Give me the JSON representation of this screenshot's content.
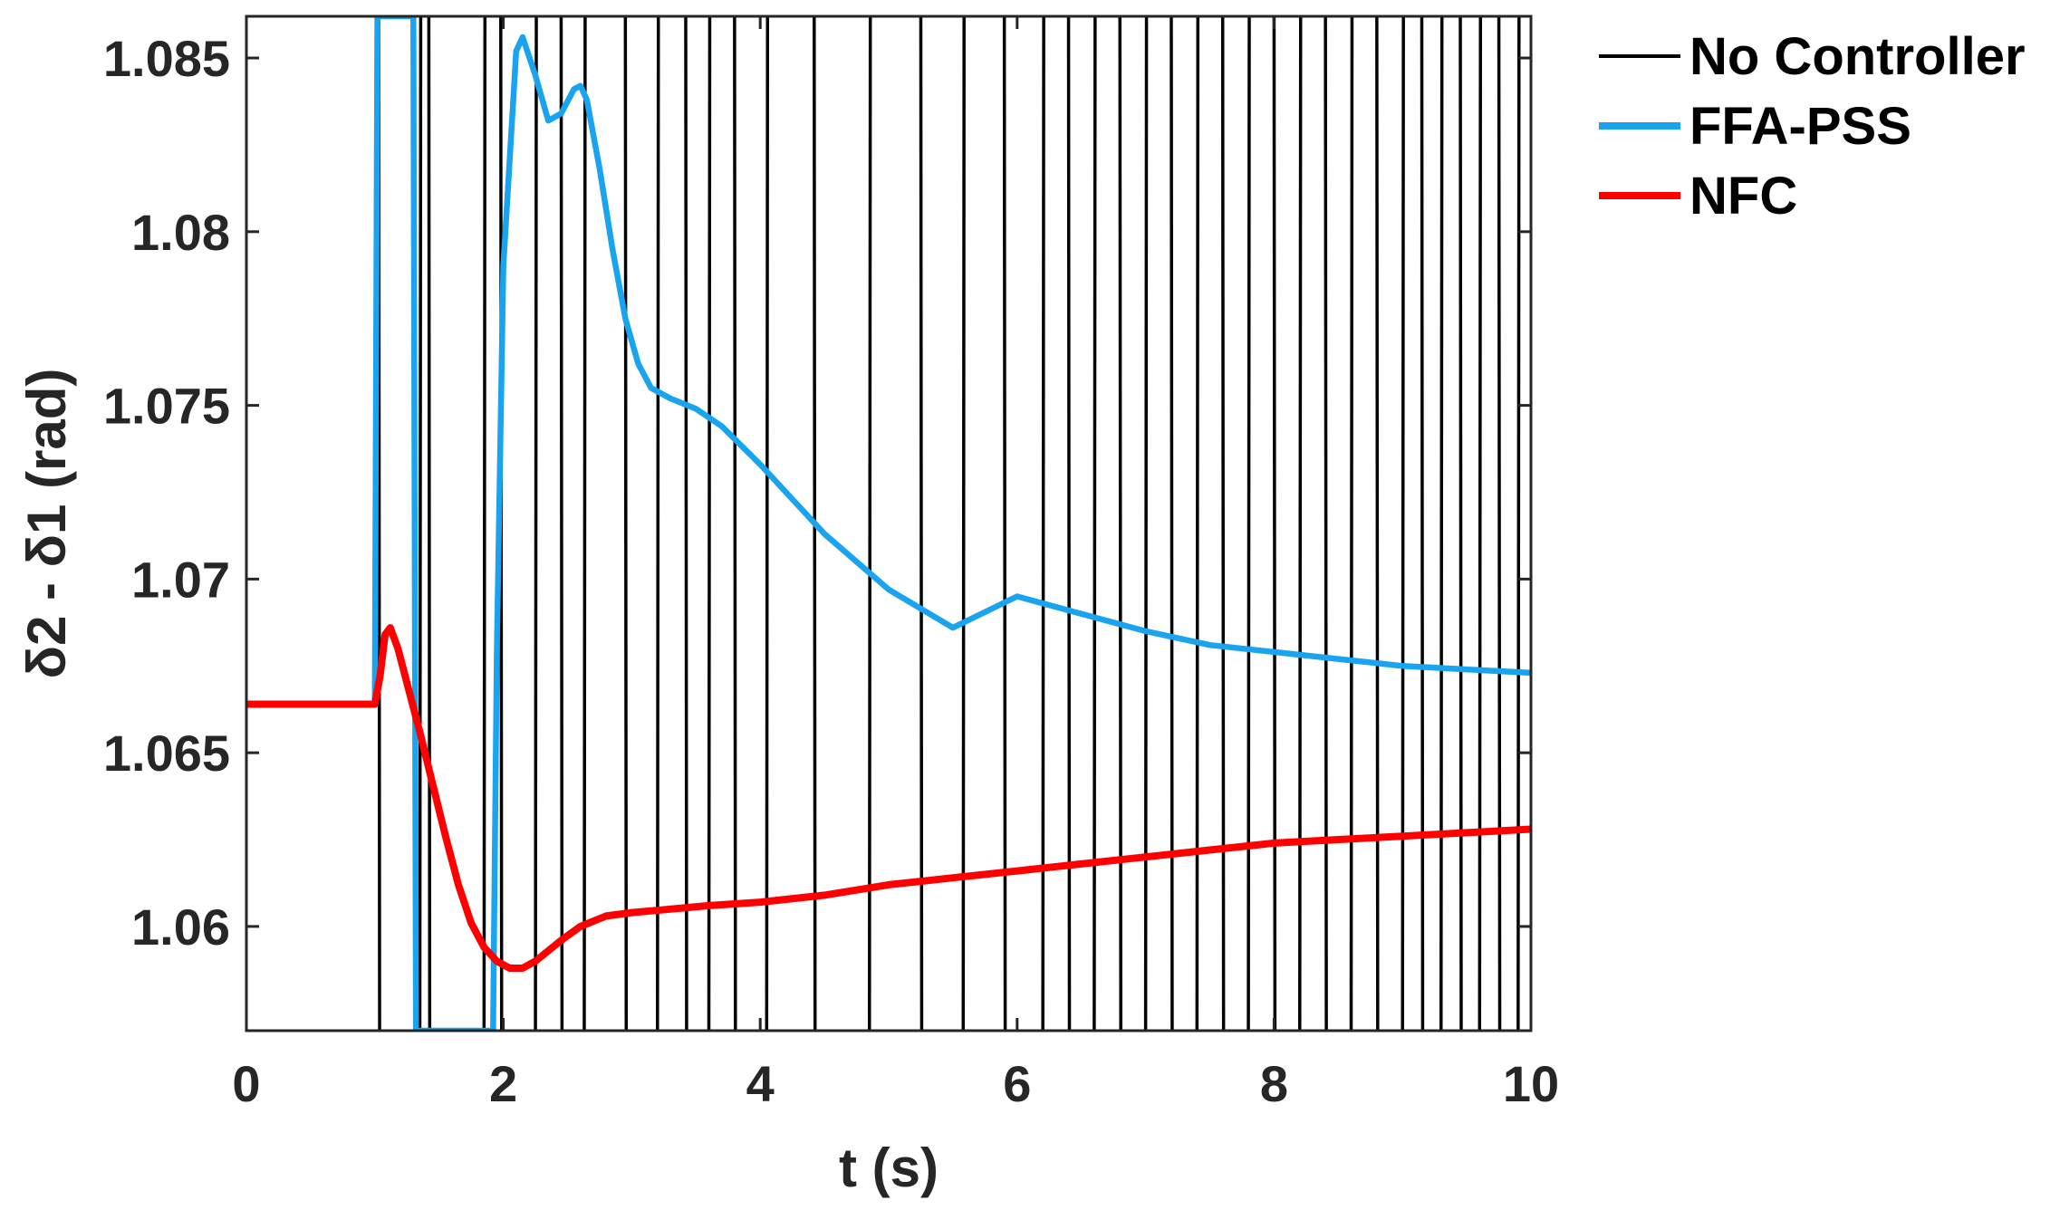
{
  "chart_data": {
    "type": "line",
    "xlabel": "t (s)",
    "ylabel": "δ2 - δ1 (rad)",
    "xlim": [
      0,
      10
    ],
    "ylim": [
      1.057,
      1.0862
    ],
    "xticks": [
      0,
      2,
      4,
      6,
      8,
      10
    ],
    "xtick_labels": [
      "0",
      "2",
      "4",
      "6",
      "8",
      "10"
    ],
    "yticks": [
      1.06,
      1.065,
      1.07,
      1.075,
      1.08,
      1.085
    ],
    "ytick_labels": [
      "1.06",
      "1.065",
      "1.07",
      "1.075",
      "1.08",
      "1.085"
    ],
    "grid": false,
    "legend_position": "outside-top-right",
    "series": [
      {
        "name": "No Controller",
        "color": "#000000",
        "note_style": "oscillation",
        "crossings_t": [
          1.03,
          1.35,
          1.42,
          1.85,
          1.98,
          2.25,
          2.45,
          2.63,
          2.95,
          3.2,
          3.42,
          3.6,
          3.8,
          4.05,
          4.42,
          4.85,
          5.25,
          5.58,
          5.9,
          6.2,
          6.4,
          6.6,
          6.8,
          7.0,
          7.2,
          7.4,
          7.6,
          7.8,
          8.0,
          8.2,
          8.4,
          8.6,
          8.8,
          9.0,
          9.15,
          9.3,
          9.45,
          9.6,
          9.75,
          9.9
        ]
      },
      {
        "name": "FFA-PSS",
        "color": "#1aa3ef",
        "x": [
          0,
          1.0,
          1.02,
          1.05,
          1.08,
          1.3,
          1.32,
          1.34,
          1.36,
          1.9,
          1.92,
          1.95,
          2.0,
          2.1,
          2.15,
          2.25,
          2.35,
          2.45,
          2.55,
          2.6,
          2.65,
          2.75,
          2.85,
          2.95,
          3.05,
          3.15,
          3.3,
          3.5,
          3.7,
          4.0,
          4.5,
          5.0,
          5.5,
          6.0,
          6.5,
          7.0,
          7.5,
          8.0,
          8.5,
          9.0,
          9.5,
          10.0
        ],
        "y": [
          1.0664,
          1.0664,
          1.0862,
          1.0862,
          1.0862,
          1.0862,
          1.057,
          1.057,
          1.057,
          1.057,
          1.057,
          1.068,
          1.079,
          1.0852,
          1.0856,
          1.0845,
          1.0832,
          1.0834,
          1.0841,
          1.0842,
          1.0838,
          1.0818,
          1.0795,
          1.0775,
          1.0762,
          1.0755,
          1.0752,
          1.0749,
          1.0744,
          1.0733,
          1.0713,
          1.0697,
          1.0686,
          1.0695,
          1.069,
          1.0685,
          1.0681,
          1.0679,
          1.0677,
          1.0675,
          1.0674,
          1.0673
        ]
      },
      {
        "name": "NFC",
        "color": "#ff0000",
        "x": [
          0,
          0.5,
          1.0,
          1.04,
          1.08,
          1.12,
          1.18,
          1.25,
          1.35,
          1.45,
          1.55,
          1.65,
          1.75,
          1.85,
          1.95,
          2.05,
          2.15,
          2.25,
          2.35,
          2.45,
          2.6,
          2.8,
          3.0,
          3.3,
          3.6,
          4.0,
          4.5,
          5.0,
          5.5,
          6.0,
          6.5,
          7.0,
          7.5,
          8.0,
          8.5,
          9.0,
          9.5,
          10.0
        ],
        "y": [
          1.0664,
          1.0664,
          1.0664,
          1.0672,
          1.0684,
          1.0686,
          1.068,
          1.067,
          1.0656,
          1.0641,
          1.0626,
          1.0612,
          1.0601,
          1.0594,
          1.059,
          1.0588,
          1.0588,
          1.059,
          1.0593,
          1.0596,
          1.06,
          1.0603,
          1.0604,
          1.0605,
          1.0606,
          1.0607,
          1.0609,
          1.0612,
          1.0614,
          1.0616,
          1.0618,
          1.062,
          1.0622,
          1.0624,
          1.0625,
          1.0626,
          1.0627,
          1.0628
        ]
      }
    ]
  }
}
